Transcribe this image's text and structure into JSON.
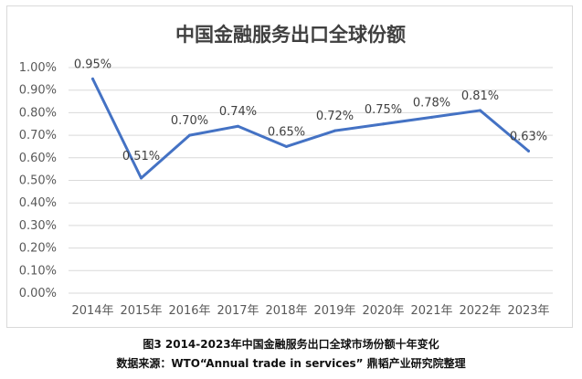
{
  "chart_data": {
    "type": "line",
    "title": "中国金融服务出口全球份额",
    "categories": [
      "2014年",
      "2015年",
      "2016年",
      "2017年",
      "2018年",
      "2019年",
      "2020年",
      "2021年",
      "2022年",
      "2023年"
    ],
    "series": [
      {
        "values": [
          0.95,
          0.51,
          0.7,
          0.74,
          0.65,
          0.72,
          0.75,
          0.78,
          0.81,
          0.63
        ]
      }
    ],
    "data_labels": [
      "0.95%",
      "0.51%",
      "0.70%",
      "0.74%",
      "0.65%",
      "0.72%",
      "0.75%",
      "0.78%",
      "0.81%",
      "0.63%"
    ],
    "yticks": [
      "0.00%",
      "0.10%",
      "0.20%",
      "0.30%",
      "0.40%",
      "0.50%",
      "0.60%",
      "0.70%",
      "0.80%",
      "0.90%",
      "1.00%"
    ],
    "ylim": [
      0,
      1.0
    ],
    "grid": true,
    "line_color": "#4472c4",
    "grid_color": "#d9d9d9"
  },
  "captions": {
    "figure": "图3 2014-2023年中国金融服务出口全球市场份额十年变化",
    "source": "数据来源：WTO“Annual trade in services” 鼎韬产业研究院整理"
  }
}
